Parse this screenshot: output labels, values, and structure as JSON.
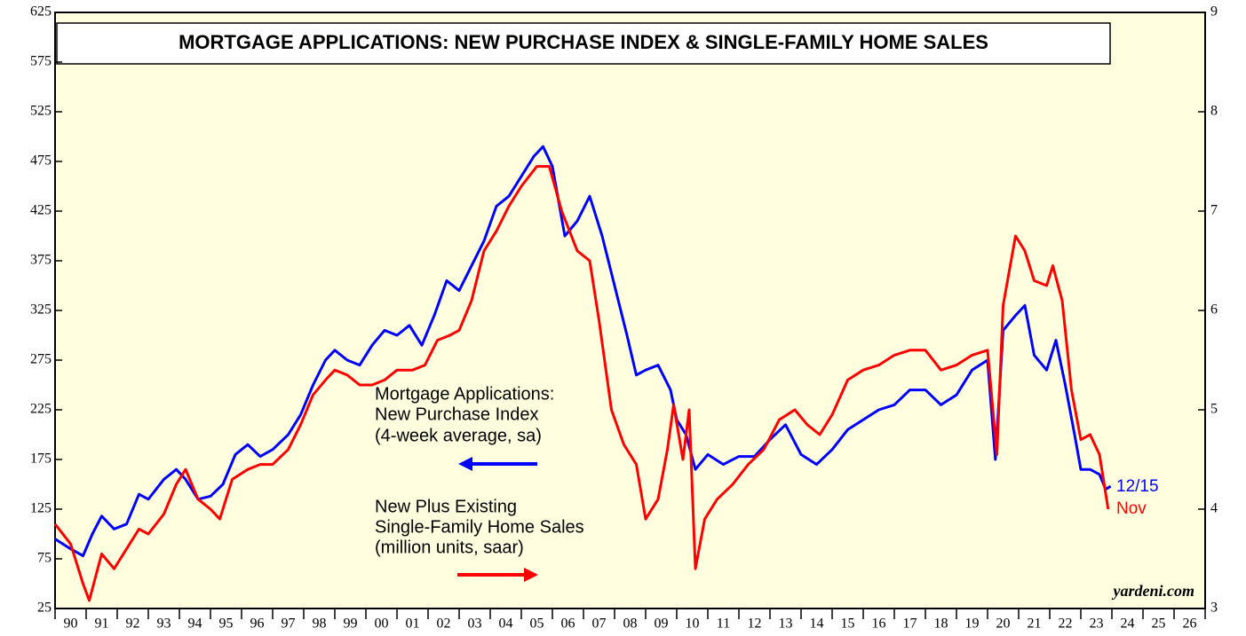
{
  "chart_data": {
    "type": "line",
    "title": "MORTGAGE APPLICATIONS: NEW PURCHASE INDEX & SINGLE-FAMILY HOME SALES",
    "source": "yardeni.com",
    "xlim": [
      1990,
      2027
    ],
    "xticks": [
      1990,
      1991,
      1992,
      1993,
      1994,
      1995,
      1996,
      1997,
      1998,
      1999,
      2000,
      2001,
      2002,
      2003,
      2004,
      2005,
      2006,
      2007,
      2008,
      2009,
      2010,
      2011,
      2012,
      2013,
      2014,
      2015,
      2016,
      2017,
      2018,
      2019,
      2020,
      2021,
      2022,
      2023,
      2024,
      2025,
      2026,
      2027
    ],
    "xtick_labels": [
      {
        "value": 1990.5,
        "label": "90"
      },
      {
        "value": 1991.5,
        "label": "91"
      },
      {
        "value": 1992.5,
        "label": "92"
      },
      {
        "value": 1993.5,
        "label": "93"
      },
      {
        "value": 1994.5,
        "label": "94"
      },
      {
        "value": 1995.5,
        "label": "95"
      },
      {
        "value": 1996.5,
        "label": "96"
      },
      {
        "value": 1997.5,
        "label": "97"
      },
      {
        "value": 1998.5,
        "label": "98"
      },
      {
        "value": 1999.5,
        "label": "99"
      },
      {
        "value": 2000.5,
        "label": "00"
      },
      {
        "value": 2001.5,
        "label": "01"
      },
      {
        "value": 2002.5,
        "label": "02"
      },
      {
        "value": 2003.5,
        "label": "03"
      },
      {
        "value": 2004.5,
        "label": "04"
      },
      {
        "value": 2005.5,
        "label": "05"
      },
      {
        "value": 2006.5,
        "label": "06"
      },
      {
        "value": 2007.5,
        "label": "07"
      },
      {
        "value": 2008.5,
        "label": "08"
      },
      {
        "value": 2009.5,
        "label": "09"
      },
      {
        "value": 2010.5,
        "label": "10"
      },
      {
        "value": 2011.5,
        "label": "11"
      },
      {
        "value": 2012.5,
        "label": "12"
      },
      {
        "value": 2013.5,
        "label": "13"
      },
      {
        "value": 2014.5,
        "label": "14"
      },
      {
        "value": 2015.5,
        "label": "15"
      },
      {
        "value": 2016.5,
        "label": "16"
      },
      {
        "value": 2017.5,
        "label": "17"
      },
      {
        "value": 2018.5,
        "label": "18"
      },
      {
        "value": 2019.5,
        "label": "19"
      },
      {
        "value": 2020.5,
        "label": "20"
      },
      {
        "value": 2021.5,
        "label": "21"
      },
      {
        "value": 2022.5,
        "label": "22"
      },
      {
        "value": 2023.5,
        "label": "23"
      },
      {
        "value": 2024.5,
        "label": "24"
      },
      {
        "value": 2025.5,
        "label": "25"
      },
      {
        "value": 2026.5,
        "label": "26"
      }
    ],
    "ylim": [
      25,
      625
    ],
    "yticks": [
      25,
      75,
      125,
      175,
      225,
      275,
      325,
      375,
      425,
      475,
      525,
      575,
      625
    ],
    "y2lim": [
      3,
      9
    ],
    "y2ticks": [
      3,
      4,
      5,
      6,
      7,
      8,
      9
    ],
    "series": [
      {
        "name": [
          "Mortgage Applications:",
          "New Purchase Index",
          "(4-week average, sa)"
        ],
        "end_label": "12/15",
        "color": "#0000ff",
        "axis": "y",
        "x": [
          1990.0,
          1990.5,
          1990.9,
          1991.2,
          1991.5,
          1991.9,
          1992.3,
          1992.7,
          1993.0,
          1993.5,
          1993.9,
          1994.2,
          1994.6,
          1995.0,
          1995.4,
          1995.8,
          1996.2,
          1996.6,
          1997.0,
          1997.5,
          1997.9,
          1998.3,
          1998.7,
          1999.0,
          1999.4,
          1999.8,
          2000.2,
          2000.6,
          2001.0,
          2001.4,
          2001.8,
          2002.2,
          2002.6,
          2003.0,
          2003.4,
          2003.8,
          2004.2,
          2004.6,
          2005.0,
          2005.4,
          2005.7,
          2006.0,
          2006.4,
          2006.8,
          2007.2,
          2007.6,
          2008.0,
          2008.4,
          2008.7,
          2009.0,
          2009.4,
          2009.8,
          2010.0,
          2010.3,
          2010.6,
          2011.0,
          2011.5,
          2012.0,
          2012.5,
          2013.0,
          2013.5,
          2014.0,
          2014.5,
          2015.0,
          2015.5,
          2016.0,
          2016.5,
          2017.0,
          2017.5,
          2018.0,
          2018.5,
          2019.0,
          2019.5,
          2020.0,
          2020.25,
          2020.5,
          2020.9,
          2021.2,
          2021.5,
          2021.9,
          2022.2,
          2022.5,
          2022.8,
          2023.0,
          2023.3,
          2023.6,
          2023.8,
          2023.96
        ],
        "values": [
          95,
          85,
          78,
          100,
          118,
          105,
          110,
          140,
          135,
          155,
          165,
          155,
          135,
          138,
          150,
          180,
          190,
          178,
          185,
          200,
          220,
          250,
          275,
          285,
          275,
          270,
          290,
          305,
          300,
          310,
          290,
          320,
          355,
          345,
          370,
          395,
          430,
          440,
          460,
          480,
          490,
          470,
          400,
          415,
          440,
          400,
          350,
          300,
          260,
          265,
          270,
          245,
          215,
          200,
          165,
          180,
          170,
          178,
          178,
          195,
          210,
          180,
          170,
          185,
          205,
          215,
          225,
          230,
          245,
          245,
          230,
          240,
          265,
          275,
          175,
          305,
          320,
          330,
          280,
          265,
          295,
          250,
          200,
          165,
          165,
          160,
          145,
          148
        ]
      },
      {
        "name": [
          "New Plus Existing",
          "Single-Family Home Sales",
          "(million units, saar)"
        ],
        "end_label": "Nov",
        "color": "#ff0000",
        "axis": "y2",
        "x": [
          1990.0,
          1990.5,
          1990.9,
          1991.1,
          1991.5,
          1991.9,
          1992.3,
          1992.7,
          1993.0,
          1993.5,
          1993.9,
          1994.2,
          1994.6,
          1995.0,
          1995.3,
          1995.7,
          1996.2,
          1996.6,
          1997.0,
          1997.5,
          1997.9,
          1998.3,
          1998.7,
          1999.0,
          1999.4,
          1999.8,
          2000.2,
          2000.6,
          2001.0,
          2001.5,
          2001.9,
          2002.3,
          2002.7,
          2003.0,
          2003.4,
          2003.8,
          2004.2,
          2004.6,
          2005.0,
          2005.5,
          2005.9,
          2006.3,
          2006.8,
          2007.2,
          2007.5,
          2007.9,
          2008.3,
          2008.7,
          2009.0,
          2009.4,
          2009.7,
          2009.9,
          2010.2,
          2010.4,
          2010.6,
          2010.9,
          2011.3,
          2011.8,
          2012.3,
          2012.8,
          2013.3,
          2013.8,
          2014.2,
          2014.6,
          2015.0,
          2015.5,
          2016.0,
          2016.5,
          2017.0,
          2017.5,
          2018.0,
          2018.5,
          2019.0,
          2019.5,
          2020.0,
          2020.3,
          2020.5,
          2020.9,
          2021.2,
          2021.5,
          2021.9,
          2022.1,
          2022.4,
          2022.7,
          2023.0,
          2023.3,
          2023.6,
          2023.88
        ],
        "values": [
          3.85,
          3.65,
          3.25,
          3.08,
          3.55,
          3.4,
          3.6,
          3.8,
          3.75,
          3.95,
          4.25,
          4.4,
          4.1,
          4.0,
          3.9,
          4.3,
          4.4,
          4.45,
          4.45,
          4.6,
          4.85,
          5.15,
          5.3,
          5.4,
          5.35,
          5.25,
          5.25,
          5.3,
          5.4,
          5.4,
          5.45,
          5.7,
          5.75,
          5.8,
          6.1,
          6.6,
          6.8,
          7.05,
          7.25,
          7.45,
          7.45,
          7.0,
          6.6,
          6.5,
          5.9,
          5.0,
          4.65,
          4.45,
          3.9,
          4.1,
          4.6,
          5.05,
          4.5,
          5.0,
          3.4,
          3.9,
          4.1,
          4.25,
          4.45,
          4.6,
          4.9,
          5.0,
          4.85,
          4.75,
          4.95,
          5.3,
          5.4,
          5.45,
          5.55,
          5.6,
          5.6,
          5.4,
          5.45,
          5.55,
          5.6,
          4.55,
          6.05,
          6.75,
          6.6,
          6.3,
          6.25,
          6.45,
          6.1,
          5.2,
          4.7,
          4.75,
          4.55,
          4.0
        ]
      }
    ]
  }
}
